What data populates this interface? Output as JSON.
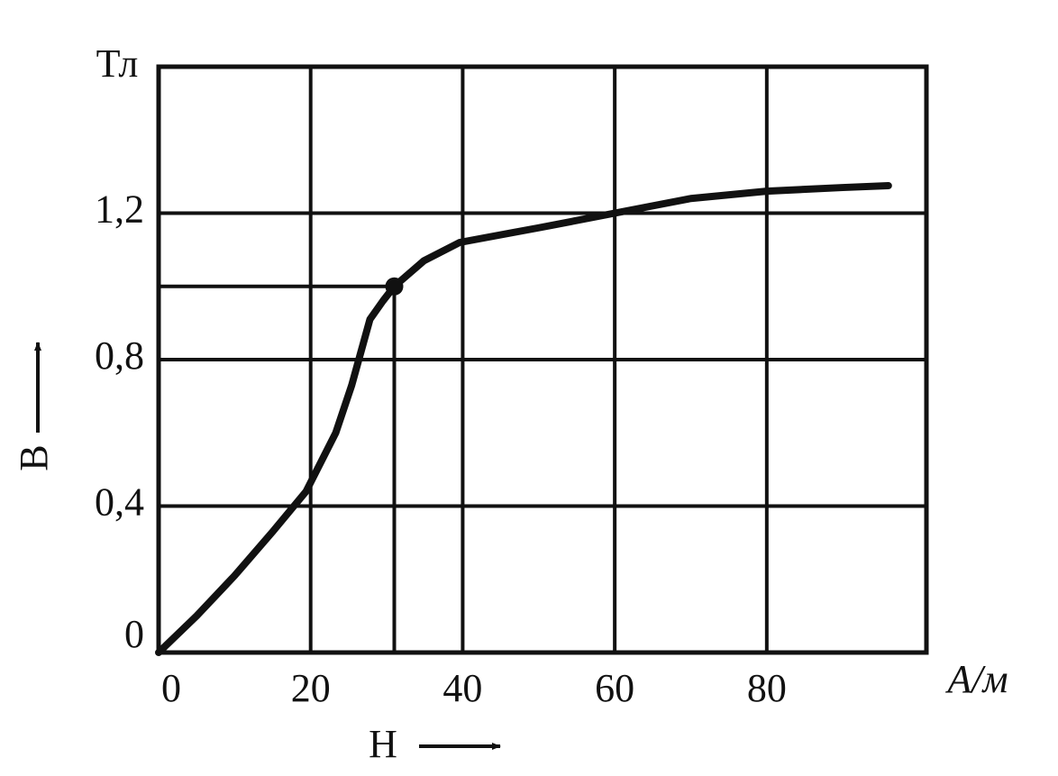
{
  "chart_data": {
    "type": "line",
    "x_label": "H",
    "y_label": "B",
    "x_unit": "A/м",
    "y_unit": "Тл",
    "x": [
      0,
      5,
      10,
      15,
      19.4,
      23.3,
      25.4,
      26.6,
      27.8,
      29.5,
      31,
      34.9,
      39.6,
      50,
      60,
      70,
      80,
      90,
      96
    ],
    "series": [
      {
        "color": "#111111",
        "values": [
          0,
          0.1,
          0.21,
          0.33,
          0.44,
          0.6,
          0.73,
          0.82,
          0.91,
          0.96,
          1.0,
          1.07,
          1.12,
          1.16,
          1.2,
          1.24,
          1.26,
          1.27,
          1.275
        ]
      }
    ],
    "point": {
      "x": 31,
      "y": 1.0
    },
    "xlim": [
      0,
      101
    ],
    "ylim": [
      0,
      1.6
    ],
    "xticks": [
      0,
      20,
      40,
      60,
      80
    ],
    "yticks": [
      0,
      {
        "value": 0.4,
        "label": "0,4"
      },
      {
        "value": 0.8,
        "label": "0,8"
      },
      {
        "value": 1.2,
        "label": "1,2"
      }
    ],
    "grid": true
  }
}
